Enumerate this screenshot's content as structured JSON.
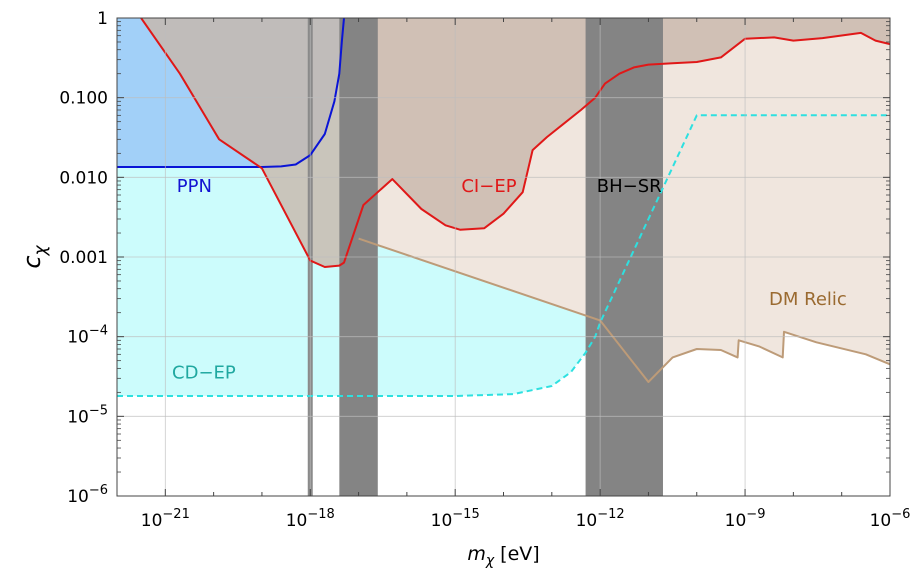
{
  "chart_data": {
    "type": "area",
    "xlabel": "m_χ [eV]",
    "ylabel": "c_χ",
    "x_scale": "log",
    "y_scale": "log",
    "xlim": [
      1e-22,
      1e-06
    ],
    "ylim": [
      1e-06,
      1
    ],
    "grid": true,
    "x_ticks": [
      {
        "value": 1e-21,
        "base": "10",
        "exp": "−21"
      },
      {
        "value": 1e-18,
        "base": "10",
        "exp": "−18"
      },
      {
        "value": 1e-15,
        "base": "10",
        "exp": "−15"
      },
      {
        "value": 1e-12,
        "base": "10",
        "exp": "−12"
      },
      {
        "value": 1e-09,
        "base": "10",
        "exp": "−9"
      },
      {
        "value": 1e-06,
        "base": "10",
        "exp": "−6"
      }
    ],
    "y_ticks": [
      {
        "value": 1,
        "text": "1"
      },
      {
        "value": 0.1,
        "text": "0.100"
      },
      {
        "value": 0.01,
        "text": "0.010"
      },
      {
        "value": 0.001,
        "text": "0.001"
      },
      {
        "value": 0.0001,
        "base": "10",
        "exp": "−4"
      },
      {
        "value": 1e-05,
        "base": "10",
        "exp": "−5"
      },
      {
        "value": 1e-06,
        "base": "10",
        "exp": "−6"
      }
    ],
    "series": [
      {
        "name": "CD−EP",
        "fill": "#ccfcfc",
        "edge_color": "#2ee0e0",
        "edge_style": "dashed",
        "points": [
          [
            1e-22,
            1.8e-05
          ],
          [
            1e-15,
            1.8e-05
          ],
          [
            1.6e-14,
            1.9e-05
          ],
          [
            1e-13,
            2.4e-05
          ],
          [
            2.5e-13,
            3.6e-05
          ],
          [
            5e-13,
            6.3e-05
          ],
          [
            7.9e-13,
            0.0001
          ],
          [
            1e-12,
            0.00015
          ],
          [
            1e-10,
            0.06
          ],
          [
            1e-06,
            0.06
          ]
        ]
      },
      {
        "name": "PPN",
        "fill": "#9fcef8",
        "edge_color": "#0a14d6",
        "edge_style": "solid",
        "points": [
          [
            1e-22,
            0.0135
          ],
          [
            1e-19,
            0.0135
          ],
          [
            2.5e-19,
            0.0137
          ],
          [
            5e-19,
            0.0145
          ],
          [
            1e-18,
            0.019
          ],
          [
            2e-18,
            0.035
          ],
          [
            3.16e-18,
            0.09
          ],
          [
            4e-18,
            0.2
          ],
          [
            4.5e-18,
            0.5
          ],
          [
            5e-18,
            1
          ]
        ]
      },
      {
        "name": "CI−EP",
        "fill": "#c8b6aa",
        "edge_color": "#e01818",
        "edge_style": "solid",
        "points": [
          [
            3.16e-22,
            1
          ],
          [
            2e-21,
            0.2
          ],
          [
            1.3e-20,
            0.03
          ],
          [
            1e-19,
            0.013
          ],
          [
            1e-18,
            0.0009
          ],
          [
            2e-18,
            0.00075
          ],
          [
            4e-18,
            0.00078
          ],
          [
            5e-18,
            0.00085
          ],
          [
            1.26e-17,
            0.0045
          ],
          [
            5e-17,
            0.0095
          ],
          [
            2e-16,
            0.004
          ],
          [
            6.3e-16,
            0.0025
          ],
          [
            1.26e-15,
            0.0022
          ],
          [
            4e-15,
            0.0023
          ],
          [
            1e-14,
            0.0035
          ],
          [
            2.5e-14,
            0.0065
          ],
          [
            4e-14,
            0.022
          ],
          [
            7.9e-14,
            0.032
          ],
          [
            1.6e-13,
            0.045
          ],
          [
            4e-13,
            0.07
          ],
          [
            7.9e-13,
            0.1
          ],
          [
            1.26e-12,
            0.15
          ],
          [
            2.5e-12,
            0.2
          ],
          [
            5e-12,
            0.24
          ],
          [
            1e-11,
            0.26
          ],
          [
            3.16e-11,
            0.27
          ],
          [
            1e-10,
            0.28
          ],
          [
            3.16e-10,
            0.32
          ],
          [
            1e-09,
            0.55
          ],
          [
            4e-09,
            0.57
          ],
          [
            1e-08,
            0.52
          ],
          [
            4e-08,
            0.56
          ],
          [
            2.5e-07,
            0.65
          ],
          [
            5e-07,
            0.52
          ],
          [
            1e-06,
            0.47
          ]
        ]
      },
      {
        "name": "DM Relic",
        "fill": "#f0e6de",
        "edge_color": "#bd9b78",
        "edge_style": "solid",
        "points": [
          [
            1e-17,
            0.0017
          ],
          [
            1e-12,
            0.00016
          ],
          [
            1e-11,
            2.7e-05
          ],
          [
            3.16e-11,
            5.5e-05
          ],
          [
            1e-10,
            7e-05
          ],
          [
            3.16e-10,
            6.8e-05
          ],
          [
            7e-10,
            5.5e-05
          ],
          [
            7.4e-10,
            9e-05
          ],
          [
            2e-09,
            7.5e-05
          ],
          [
            6e-09,
            5.5e-05
          ],
          [
            6.4e-09,
            0.000115
          ],
          [
            3e-08,
            8.5e-05
          ],
          [
            3.16e-07,
            6e-05
          ],
          [
            1e-06,
            4.5e-05
          ]
        ]
      },
      {
        "name": "BH−SR",
        "fill": "#848484",
        "bands": [
          [
            4e-18,
            2.5e-17
          ],
          [
            5e-13,
            2e-11
          ]
        ],
        "lines": [
          1e-18
        ]
      }
    ],
    "annotations": [
      {
        "text": "PPN",
        "x": 4e-21,
        "y": 0.0065,
        "color": "#1414d2"
      },
      {
        "text": "CI−EP",
        "x": 5e-15,
        "y": 0.0065,
        "color": "#e01818"
      },
      {
        "text": "BH−SR",
        "x": 4e-12,
        "y": 0.0065,
        "color": "#000000"
      },
      {
        "text": "CD−EP",
        "x": 6.3e-21,
        "y": 3e-05,
        "color": "#20a8a0"
      },
      {
        "text": "DM Relic",
        "x": 2e-08,
        "y": 0.00025,
        "color": "#9a6a30"
      }
    ]
  }
}
